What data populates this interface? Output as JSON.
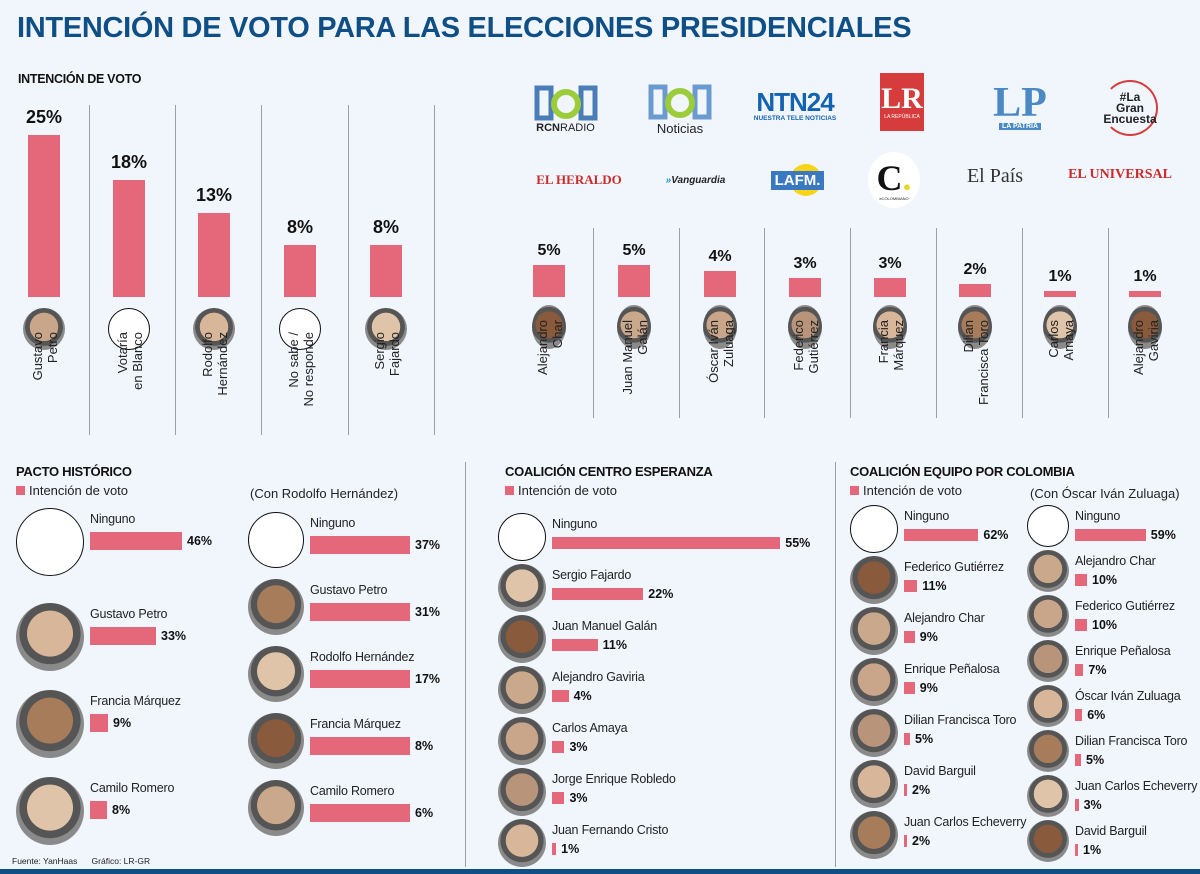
{
  "title": "INTENCIÓN DE VOTO PARA LAS ELECCIONES PRESIDENCIALES",
  "colors": {
    "title": "#0f4f86",
    "bar": "#e4687a",
    "background": "#f1f6fd"
  },
  "footer": {
    "source": "Fuente: YanHaas",
    "graphic": "Gráfico: LR-GR"
  },
  "logos": [
    "RCN RADIO",
    "RCN Noticias",
    "NTN24 NUESTRA TELE NOTICIAS",
    "LR LA REPÚBLICA",
    "LP LA PATRIA",
    "#La Gran Encuesta",
    "EL HERALDO",
    "Vanguardia",
    "LA FM.",
    "EL COLOMBIANO",
    "El País",
    "EL UNIVERSAL"
  ],
  "chart_data": [
    {
      "type": "bar",
      "title": "INTENCIÓN DE VOTO",
      "categories": [
        "Gustavo Petro",
        "Votaría en Blanco",
        "Rodolfo Hernández",
        "No sabe / No responde",
        "Sergio Fajardo",
        "Alejandro Char",
        "Juan Manuel Galán",
        "Óscar Iván Zuluaga",
        "Federico Gutiérrez",
        "Francia Márquez",
        "Dilian Francisca Toro",
        "Carlos Amaya",
        "Alejandro Gaviria"
      ],
      "labels": [
        "Gustavo\nPetro",
        "Votaría\nen Blanco",
        "Rodolfo\nHernández",
        "No sabe /\nNo responde",
        "Sergio\nFajardo",
        "Alejandro\nChar",
        "Juan Manuel\nGalán",
        "Óscar Iván\nZuluaga",
        "Federico\nGutiérrez",
        "Francia\nMárquez",
        "Dilian\nFrancisca Toro",
        "Carlos\nAmaya",
        "Alejandro\nGaviria"
      ],
      "values": [
        25,
        18,
        13,
        8,
        8,
        5,
        5,
        4,
        3,
        3,
        2,
        1,
        1
      ],
      "value_labels": [
        "25%",
        "18%",
        "13%",
        "8%",
        "8%",
        "5%",
        "5%",
        "4%",
        "3%",
        "3%",
        "2%",
        "1%",
        "1%"
      ],
      "blank_avatar": [
        false,
        true,
        false,
        true,
        false,
        false,
        false,
        false,
        false,
        false,
        false,
        false,
        false
      ],
      "xlabel": "",
      "ylabel": "",
      "ylim": [
        0,
        25
      ]
    },
    {
      "type": "bar",
      "orientation": "horizontal",
      "title": "PACTO HISTÓRICO",
      "legend": "Intención de voto",
      "categories": [
        "Ninguno",
        "Gustavo Petro",
        "Francia Márquez",
        "Camilo Romero"
      ],
      "values": [
        46,
        33,
        9,
        8
      ],
      "value_labels": [
        "46%",
        "33%",
        "9%",
        "8%"
      ]
    },
    {
      "type": "bar",
      "orientation": "horizontal",
      "title": "(Con Rodolfo Hernández)",
      "categories": [
        "Ninguno",
        "Gustavo Petro",
        "Rodolfo Hernández",
        "Francia Márquez",
        "Camilo Romero"
      ],
      "values": [
        37,
        31,
        17,
        8,
        6
      ],
      "value_labels": [
        "37%",
        "31%",
        "17%",
        "8%",
        "6%"
      ]
    },
    {
      "type": "bar",
      "orientation": "horizontal",
      "title": "COALICIÓN CENTRO ESPERANZA",
      "legend": "Intención de voto",
      "categories": [
        "Ninguno",
        "Sergio Fajardo",
        "Juan Manuel Galán",
        "Alejandro Gaviria",
        "Carlos Amaya",
        "Jorge Enrique Robledo",
        "Juan Fernando Cristo"
      ],
      "values": [
        55,
        22,
        11,
        4,
        3,
        3,
        1
      ],
      "value_labels": [
        "55%",
        "22%",
        "11%",
        "4%",
        "3%",
        "3%",
        "1%"
      ]
    },
    {
      "type": "bar",
      "orientation": "horizontal",
      "title": "COALICIÓN EQUIPO POR COLOMBIA",
      "legend": "Intención de voto",
      "categories": [
        "Ninguno",
        "Federico Gutiérrez",
        "Alejandro Char",
        "Enrique Peñalosa",
        "Dilian Francisca Toro",
        "David Barguil",
        "Juan Carlos Echeverry"
      ],
      "values": [
        62,
        11,
        9,
        9,
        5,
        2,
        2
      ],
      "value_labels": [
        "62%",
        "11%",
        "9%",
        "9%",
        "5%",
        "2%",
        "2%"
      ]
    },
    {
      "type": "bar",
      "orientation": "horizontal",
      "title": "(Con Óscar Iván Zuluaga)",
      "categories": [
        "Ninguno",
        "Alejandro Char",
        "Federico Gutiérrez",
        "Enrique Peñalosa",
        "Óscar Iván Zuluaga",
        "Dilian Francisca Toro",
        "Juan Carlos Echeverry",
        "David Barguil"
      ],
      "values": [
        59,
        10,
        10,
        7,
        6,
        5,
        3,
        1
      ],
      "value_labels": [
        "59%",
        "10%",
        "10%",
        "7%",
        "6%",
        "5%",
        "3%",
        "1%"
      ]
    }
  ]
}
